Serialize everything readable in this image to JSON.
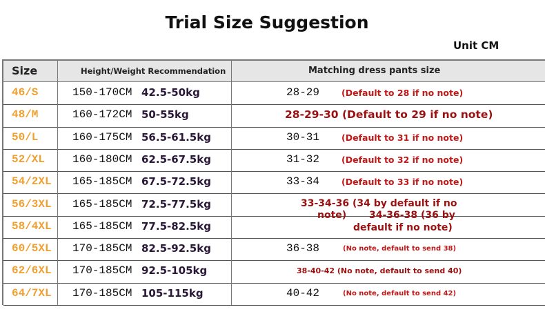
{
  "title": "Trial Size Suggestion",
  "unit": "Unit CM",
  "headers": {
    "size": "Size",
    "height_weight": "Height/Weight Recommendation",
    "pants": "Matching dress pants size"
  },
  "rows": [
    {
      "size": "46/S",
      "height": "150-170CM",
      "weight": "42.5-50kg",
      "pants": "28-29",
      "note": "(Default to 28 if no note)"
    },
    {
      "size": "48/M",
      "height": "160-172CM",
      "weight": "50-55kg",
      "pants_full": "28-29-30 (Default to 29 if no note)"
    },
    {
      "size": "50/L",
      "height": "160-175CM",
      "weight": "56.5-61.5kg",
      "pants": "30-31",
      "note": "(Default to 31 if no note)"
    },
    {
      "size": "52/XL",
      "height": "160-180CM",
      "weight": "62.5-67.5kg",
      "pants": "31-32",
      "note": "(Default to 32 if no note)"
    },
    {
      "size": "54/2XL",
      "height": "165-185CM",
      "weight": "67.5-72.5kg",
      "pants": "33-34",
      "note": "(Default to 33 if no note)"
    },
    {
      "size": "56/3XL",
      "height": "165-185CM",
      "weight": "72.5-77.5kg"
    },
    {
      "size": "58/4XL",
      "height": "165-185CM",
      "weight": "77.5-82.5kg"
    },
    {
      "size": "60/5XL",
      "height": "170-185CM",
      "weight": "82.5-92.5kg",
      "pants": "36-38",
      "note_small": "(No note, default to send 38)"
    },
    {
      "size": "62/6XL",
      "height": "170-185CM",
      "weight": "92.5-105kg",
      "pants_mid": "38-40-42 (No note, default to send 40)"
    },
    {
      "size": "64/7XL",
      "height": "170-185CM",
      "weight": "105-115kg",
      "pants": "40-42",
      "note_small": "(No note, default to send 42)"
    }
  ],
  "overlay": {
    "line1": "33-34-36 (34 by default if no",
    "line2a": "note)",
    "line2b": "34-36-38 (36 by",
    "line3": "default if no note)"
  }
}
